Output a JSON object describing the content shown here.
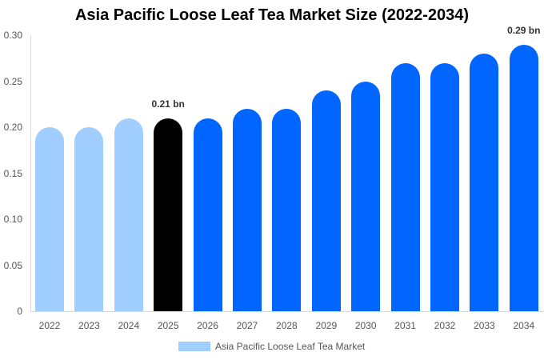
{
  "chart_data": {
    "type": "bar",
    "title": "Asia Pacific Loose Leaf Tea Market Size (2022-2034)",
    "xlabel": "",
    "ylabel": "",
    "ylim": [
      0,
      0.3
    ],
    "yticks": [
      "0",
      "0.05",
      "0.10",
      "0.15",
      "0.20",
      "0.25",
      "0.30"
    ],
    "categories": [
      "2022",
      "2023",
      "2024",
      "2025",
      "2026",
      "2027",
      "2028",
      "2029",
      "2030",
      "2031",
      "2032",
      "2033",
      "2034"
    ],
    "series": [
      {
        "name": "Asia Pacific Loose Leaf Tea Market",
        "values": [
          0.2,
          0.2,
          0.21,
          0.21,
          0.21,
          0.22,
          0.22,
          0.24,
          0.25,
          0.27,
          0.27,
          0.28,
          0.29
        ]
      }
    ],
    "bar_colors": [
      "#a0cfff",
      "#a0cfff",
      "#a0cfff",
      "#000000",
      "#0066ff",
      "#0066ff",
      "#0066ff",
      "#0066ff",
      "#0066ff",
      "#0066ff",
      "#0066ff",
      "#0066ff",
      "#0066ff"
    ],
    "annotations": [
      {
        "category": "2025",
        "text": "0.21 bn"
      },
      {
        "category": "2034",
        "text": "0.29 bn"
      }
    ],
    "grid": false,
    "legend_position": "bottom"
  },
  "legend": {
    "label": "Asia Pacific Loose Leaf Tea Market",
    "color": "#a0cfff"
  }
}
